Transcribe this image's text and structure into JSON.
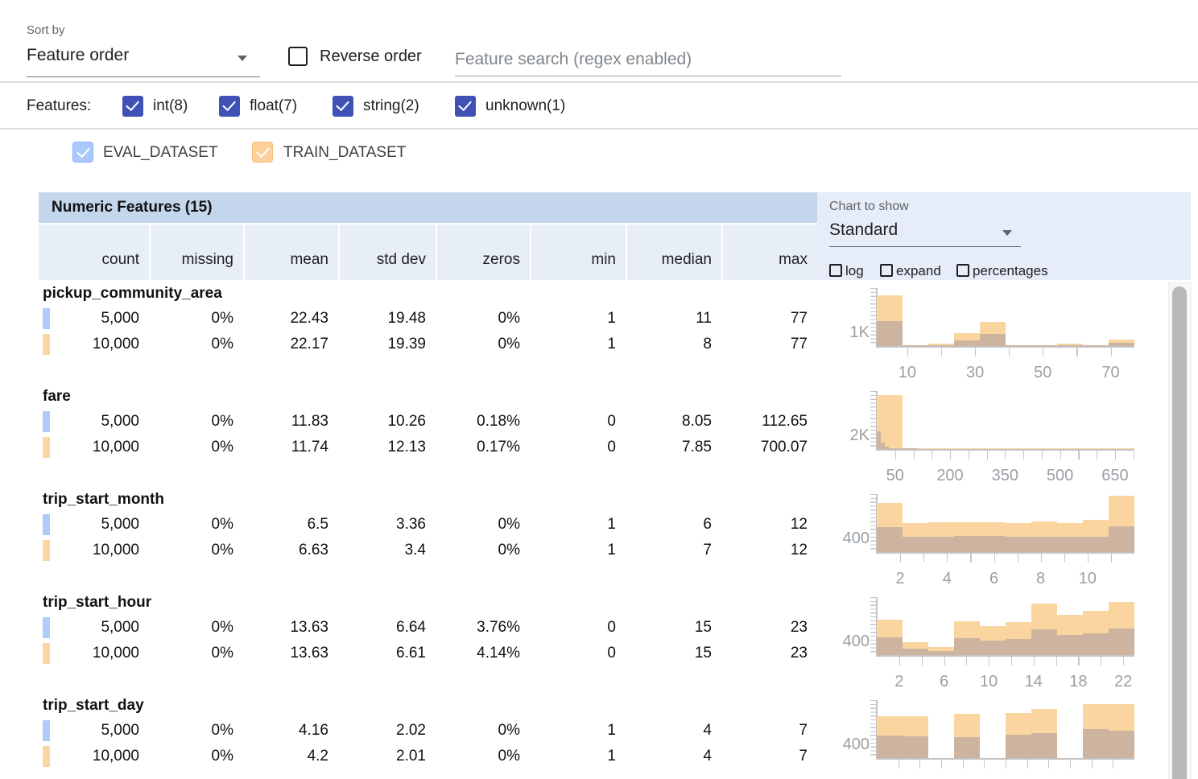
{
  "toolbar": {
    "sort_by_label": "Sort by",
    "sort_value": "Feature order",
    "reverse_label": "Reverse order",
    "search_placeholder": "Feature search (regex enabled)"
  },
  "filters": {
    "label": "Features:",
    "items": [
      {
        "label": "int(8)",
        "checked": true
      },
      {
        "label": "float(7)",
        "checked": true
      },
      {
        "label": "string(2)",
        "checked": true
      },
      {
        "label": "unknown(1)",
        "checked": true
      }
    ]
  },
  "datasets": [
    {
      "name": "EVAL_DATASET",
      "color": "#aecbfa",
      "checked": true
    },
    {
      "name": "TRAIN_DATASET",
      "color": "#fbd6a4",
      "checked": true
    }
  ],
  "table": {
    "title": "Numeric Features (15)",
    "columns": [
      "count",
      "missing",
      "mean",
      "std dev",
      "zeros",
      "min",
      "median",
      "max"
    ]
  },
  "chart_controls": {
    "label": "Chart to show",
    "selected": "Standard",
    "checkboxes": [
      "log",
      "expand",
      "percentages"
    ]
  },
  "features": [
    {
      "name": "pickup_community_area",
      "rows": [
        {
          "dataset": "EVAL_DATASET",
          "values": [
            "5,000",
            "0%",
            "22.43",
            "19.48",
            "0%",
            "1",
            "11",
            "77"
          ]
        },
        {
          "dataset": "TRAIN_DATASET",
          "values": [
            "10,000",
            "0%",
            "22.17",
            "19.39",
            "0%",
            "1",
            "8",
            "77"
          ]
        }
      ]
    },
    {
      "name": "fare",
      "rows": [
        {
          "dataset": "EVAL_DATASET",
          "values": [
            "5,000",
            "0%",
            "11.83",
            "10.26",
            "0.18%",
            "0",
            "8.05",
            "112.65"
          ]
        },
        {
          "dataset": "TRAIN_DATASET",
          "values": [
            "10,000",
            "0%",
            "11.74",
            "12.13",
            "0.17%",
            "0",
            "7.85",
            "700.07"
          ]
        }
      ]
    },
    {
      "name": "trip_start_month",
      "rows": [
        {
          "dataset": "EVAL_DATASET",
          "values": [
            "5,000",
            "0%",
            "6.5",
            "3.36",
            "0%",
            "1",
            "6",
            "12"
          ]
        },
        {
          "dataset": "TRAIN_DATASET",
          "values": [
            "10,000",
            "0%",
            "6.63",
            "3.4",
            "0%",
            "1",
            "7",
            "12"
          ]
        }
      ]
    },
    {
      "name": "trip_start_hour",
      "rows": [
        {
          "dataset": "EVAL_DATASET",
          "values": [
            "5,000",
            "0%",
            "13.63",
            "6.64",
            "3.76%",
            "0",
            "15",
            "23"
          ]
        },
        {
          "dataset": "TRAIN_DATASET",
          "values": [
            "10,000",
            "0%",
            "13.63",
            "6.61",
            "4.14%",
            "0",
            "15",
            "23"
          ]
        }
      ]
    },
    {
      "name": "trip_start_day",
      "rows": [
        {
          "dataset": "EVAL_DATASET",
          "values": [
            "5,000",
            "0%",
            "4.16",
            "2.02",
            "0%",
            "1",
            "4",
            "7"
          ]
        },
        {
          "dataset": "TRAIN_DATASET",
          "values": [
            "10,000",
            "0%",
            "4.2",
            "2.01",
            "0%",
            "1",
            "4",
            "7"
          ]
        }
      ]
    }
  ],
  "chart_data": [
    {
      "type": "bar",
      "feature": "pickup_community_area",
      "x_domain": [
        1,
        77
      ],
      "ytick": {
        "label": "1K",
        "value": 1000
      },
      "ymax": 4200,
      "xticks": [
        10,
        30,
        50,
        70
      ],
      "minor_tick_step": 10,
      "series": [
        {
          "name": "TRAIN_DATASET",
          "color": "#fbd5a0",
          "bin_start": 1,
          "bin_width": 7.6,
          "counts": [
            3700,
            60,
            160,
            950,
            1750,
            60,
            50,
            180,
            60,
            450
          ]
        },
        {
          "name": "EVAL_DATASET_overlap",
          "color": "#ccb4a1",
          "bin_start": 1,
          "bin_width": 7.6,
          "counts": [
            1800,
            30,
            80,
            420,
            850,
            30,
            25,
            90,
            30,
            220
          ]
        }
      ]
    },
    {
      "type": "bar",
      "feature": "fare",
      "x_domain": [
        0,
        703
      ],
      "ytick": {
        "label": "2K",
        "value": 2000
      },
      "ymax": 8400,
      "xticks": [
        50,
        200,
        350,
        500,
        650
      ],
      "minor_tick_step": 50,
      "series": [
        {
          "name": "TRAIN_DATASET",
          "color": "#fbd5a0",
          "bin_start": 0,
          "bin_width": 70.3,
          "counts": [
            7800,
            150,
            60,
            40,
            25,
            20,
            15,
            10,
            8,
            5
          ]
        },
        {
          "name": "EVAL_DATASET_overlap",
          "color": "#ccb4a1",
          "bin_start": 0,
          "bin_width": 11.27,
          "counts": [
            2600,
            900,
            300,
            130,
            60,
            40,
            25,
            15,
            10,
            5
          ]
        }
      ]
    },
    {
      "type": "bar",
      "feature": "trip_start_month",
      "x_domain": [
        1,
        12
      ],
      "ytick": {
        "label": "400",
        "value": 400
      },
      "ymax": 1700,
      "xticks": [
        2,
        4,
        6,
        8,
        10
      ],
      "minor_tick_step": 1,
      "series": [
        {
          "name": "TRAIN_DATASET",
          "color": "#fbd5a0",
          "bin_start": 1,
          "bin_width": 1.1,
          "counts": [
            1440,
            860,
            880,
            880,
            870,
            860,
            905,
            845,
            950,
            1650
          ]
        },
        {
          "name": "EVAL_DATASET_overlap",
          "color": "#ccb4a1",
          "bin_start": 1,
          "bin_width": 1.1,
          "counts": [
            730,
            450,
            460,
            470,
            465,
            445,
            450,
            440,
            460,
            755
          ]
        }
      ]
    },
    {
      "type": "bar",
      "feature": "trip_start_hour",
      "x_domain": [
        0,
        23
      ],
      "ytick": {
        "label": "400",
        "value": 400
      },
      "ymax": 1700,
      "xticks": [
        2,
        6,
        10,
        14,
        18,
        22
      ],
      "minor_tick_step": 2,
      "series": [
        {
          "name": "TRAIN_DATASET",
          "color": "#fbd5a0",
          "bin_start": 0,
          "bin_width": 2.3,
          "counts": [
            1035,
            375,
            235,
            990,
            845,
            965,
            1505,
            1175,
            1295,
            1555
          ]
        },
        {
          "name": "EVAL_DATASET_overlap",
          "color": "#ccb4a1",
          "bin_start": 0,
          "bin_width": 2.3,
          "counts": [
            520,
            190,
            120,
            495,
            425,
            480,
            755,
            590,
            650,
            775
          ]
        }
      ]
    },
    {
      "type": "bar",
      "feature": "trip_start_day",
      "x_domain": [
        1,
        7
      ],
      "ytick": {
        "label": "400",
        "value": 400
      },
      "ymax": 1700,
      "xticks": [],
      "minor_tick_step": 0.5,
      "series": [
        {
          "name": "TRAIN_DATASET",
          "color": "#fbd5a0",
          "bin_start": 1,
          "bin_width": 0.6,
          "counts": [
            1225,
            1225,
            0,
            1295,
            0,
            1320,
            1435,
            0,
            1575,
            1575
          ]
        },
        {
          "name": "EVAL_DATASET_overlap",
          "color": "#ccb4a1",
          "bin_start": 1,
          "bin_width": 0.6,
          "counts": [
            660,
            635,
            0,
            610,
            0,
            680,
            730,
            0,
            845,
            800
          ]
        }
      ]
    }
  ]
}
